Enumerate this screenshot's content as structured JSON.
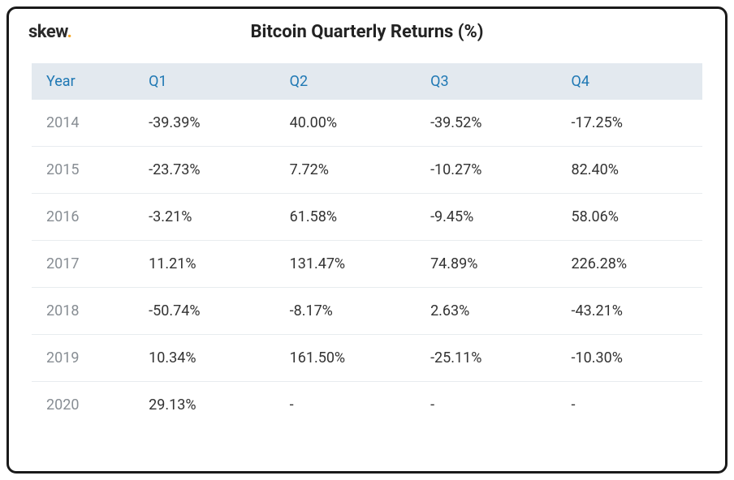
{
  "brand": {
    "name": "skew",
    "dot": "."
  },
  "table": {
    "type": "table",
    "title": "Bitcoin Quarterly Returns (%)",
    "columns": [
      "Year",
      "Q1",
      "Q2",
      "Q3",
      "Q4"
    ],
    "null_display": "-",
    "colors": {
      "positive": "#2aa24a",
      "negative": "#e25b55",
      "year_text": "#888e94",
      "header_bg": "#e3e9ef",
      "header_text": "#1f78b4",
      "row_border": "#e8ecef",
      "card_border": "#1a1a1a",
      "background": "#ffffff",
      "brand_text": "#2a2a2a",
      "brand_dot": "#f5a623"
    },
    "typography": {
      "title_fontsize_pt": 17,
      "title_fontweight": 700,
      "header_fontsize_pt": 14,
      "cell_fontsize_pt": 14,
      "logo_fontsize_pt": 17,
      "logo_fontweight": 700
    },
    "column_widths_pct": [
      16,
      21,
      21,
      21,
      21
    ],
    "rows": [
      {
        "year": "2014",
        "q": [
          "-39.39%",
          "40.00%",
          "-39.52%",
          "-17.25%"
        ],
        "sign": [
          "neg",
          "pos",
          "neg",
          "neg"
        ]
      },
      {
        "year": "2015",
        "q": [
          "-23.73%",
          "7.72%",
          "-10.27%",
          "82.40%"
        ],
        "sign": [
          "neg",
          "pos",
          "neg",
          "pos"
        ]
      },
      {
        "year": "2016",
        "q": [
          "-3.21%",
          "61.58%",
          "-9.45%",
          "58.06%"
        ],
        "sign": [
          "neg",
          "pos",
          "neg",
          "pos"
        ]
      },
      {
        "year": "2017",
        "q": [
          "11.21%",
          "131.47%",
          "74.89%",
          "226.28%"
        ],
        "sign": [
          "pos",
          "pos",
          "pos",
          "pos"
        ]
      },
      {
        "year": "2018",
        "q": [
          "-50.74%",
          "-8.17%",
          "2.63%",
          "-43.21%"
        ],
        "sign": [
          "neg",
          "neg",
          "pos",
          "neg"
        ]
      },
      {
        "year": "2019",
        "q": [
          "10.34%",
          "161.50%",
          "-25.11%",
          "-10.30%"
        ],
        "sign": [
          "pos",
          "pos",
          "neg",
          "neg"
        ]
      },
      {
        "year": "2020",
        "q": [
          "29.13%",
          null,
          null,
          null
        ],
        "sign": [
          "pos",
          "na",
          "na",
          "na"
        ]
      }
    ]
  }
}
